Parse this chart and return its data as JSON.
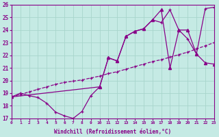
{
  "xlabel": "Windchill (Refroidissement éolien,°C)",
  "xlim": [
    0,
    23
  ],
  "ylim": [
    17,
    26
  ],
  "xticks": [
    0,
    1,
    2,
    3,
    4,
    5,
    6,
    7,
    8,
    9,
    10,
    11,
    12,
    13,
    14,
    15,
    16,
    17,
    18,
    19,
    20,
    21,
    22,
    23
  ],
  "yticks": [
    17,
    18,
    19,
    20,
    21,
    22,
    23,
    24,
    25,
    26
  ],
  "bg_color": "#c5eae4",
  "line_color": "#880088",
  "grid_color": "#a8d5cc",
  "line_jagged_x": [
    0,
    1,
    2,
    3,
    4,
    5,
    6,
    7,
    8,
    9,
    10,
    11,
    12,
    13,
    14,
    15,
    16,
    17,
    18,
    19,
    20,
    21,
    22,
    23
  ],
  "line_jagged_y": [
    18.7,
    19.0,
    18.8,
    18.65,
    18.2,
    17.5,
    17.2,
    17.0,
    17.55,
    18.8,
    19.5,
    21.8,
    21.55,
    23.5,
    23.9,
    24.1,
    24.8,
    24.6,
    25.6,
    24.0,
    23.3,
    22.1,
    25.7,
    25.8
  ],
  "line_linear_x": [
    0,
    1,
    2,
    3,
    4,
    5,
    6,
    7,
    8,
    9,
    10,
    11,
    12,
    13,
    14,
    15,
    16,
    17,
    18,
    19,
    20,
    21,
    22,
    23
  ],
  "line_linear_y": [
    18.7,
    18.9,
    19.1,
    19.3,
    19.5,
    19.7,
    19.85,
    19.95,
    20.05,
    20.2,
    20.35,
    20.55,
    20.7,
    20.9,
    21.1,
    21.3,
    21.5,
    21.65,
    21.85,
    22.05,
    22.25,
    22.5,
    22.75,
    23.0
  ],
  "line_peak_x": [
    0,
    10,
    11,
    12,
    13,
    14,
    15,
    16,
    17,
    18,
    19,
    20,
    21,
    22,
    23
  ],
  "line_peak_y": [
    18.7,
    19.5,
    21.8,
    21.55,
    23.5,
    23.9,
    24.1,
    24.8,
    25.6,
    21.0,
    24.0,
    24.0,
    22.1,
    21.4,
    21.3
  ]
}
